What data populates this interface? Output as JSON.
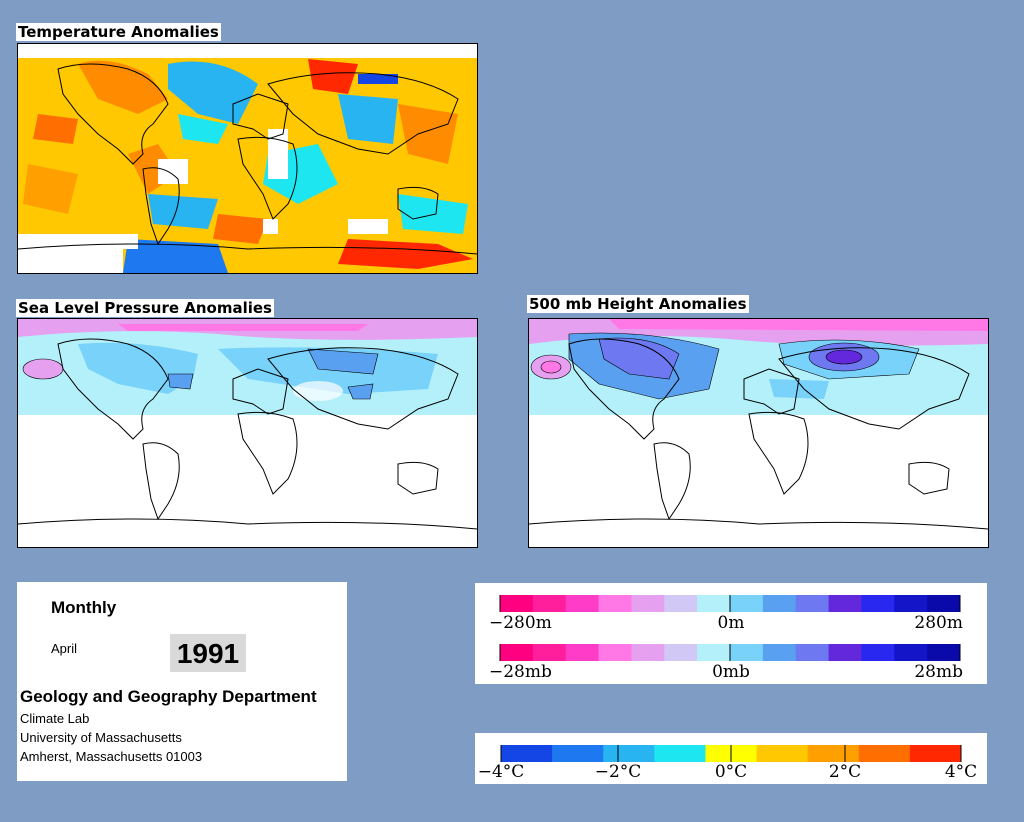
{
  "panels": {
    "temperature": {
      "title": "Temperature Anomalies"
    },
    "slp": {
      "title": "Sea Level Pressure Anomalies"
    },
    "height500": {
      "title": "500 mb Height Anomalies"
    }
  },
  "info": {
    "period": "Monthly",
    "month": "April",
    "year": "1991",
    "department": "Geology and Geography Department",
    "lines": [
      "Climate Lab",
      "University of Massachusetts",
      "Amherst, Massachusetts 01003"
    ]
  },
  "legends": {
    "height": {
      "labels": [
        "−280m",
        "0m",
        "280m"
      ]
    },
    "pressure": {
      "labels": [
        "−28mb",
        "0mb",
        "28mb"
      ]
    },
    "temperature": {
      "labels": [
        "−4°C",
        "−2°C",
        "0°C",
        "2°C",
        "4°C"
      ]
    }
  },
  "colors": {
    "background": "#7f9dc4",
    "anomaly_scale_pink_to_blue": [
      "#ff0080",
      "#ff1e9b",
      "#ff3cc8",
      "#ff78e6",
      "#e6a0f0",
      "#d2c8f5",
      "#b4f0fa",
      "#78d2fa",
      "#5aa0f0",
      "#6e78f0",
      "#6428dc",
      "#2828f0",
      "#1414c8",
      "#0a0aaa"
    ],
    "temperature_scale": [
      "#1446e6",
      "#1e78f0",
      "#28b4f0",
      "#1ee6f0",
      "#ffff00",
      "#ffc800",
      "#ffa000",
      "#ff6e00",
      "#ff2800"
    ]
  }
}
